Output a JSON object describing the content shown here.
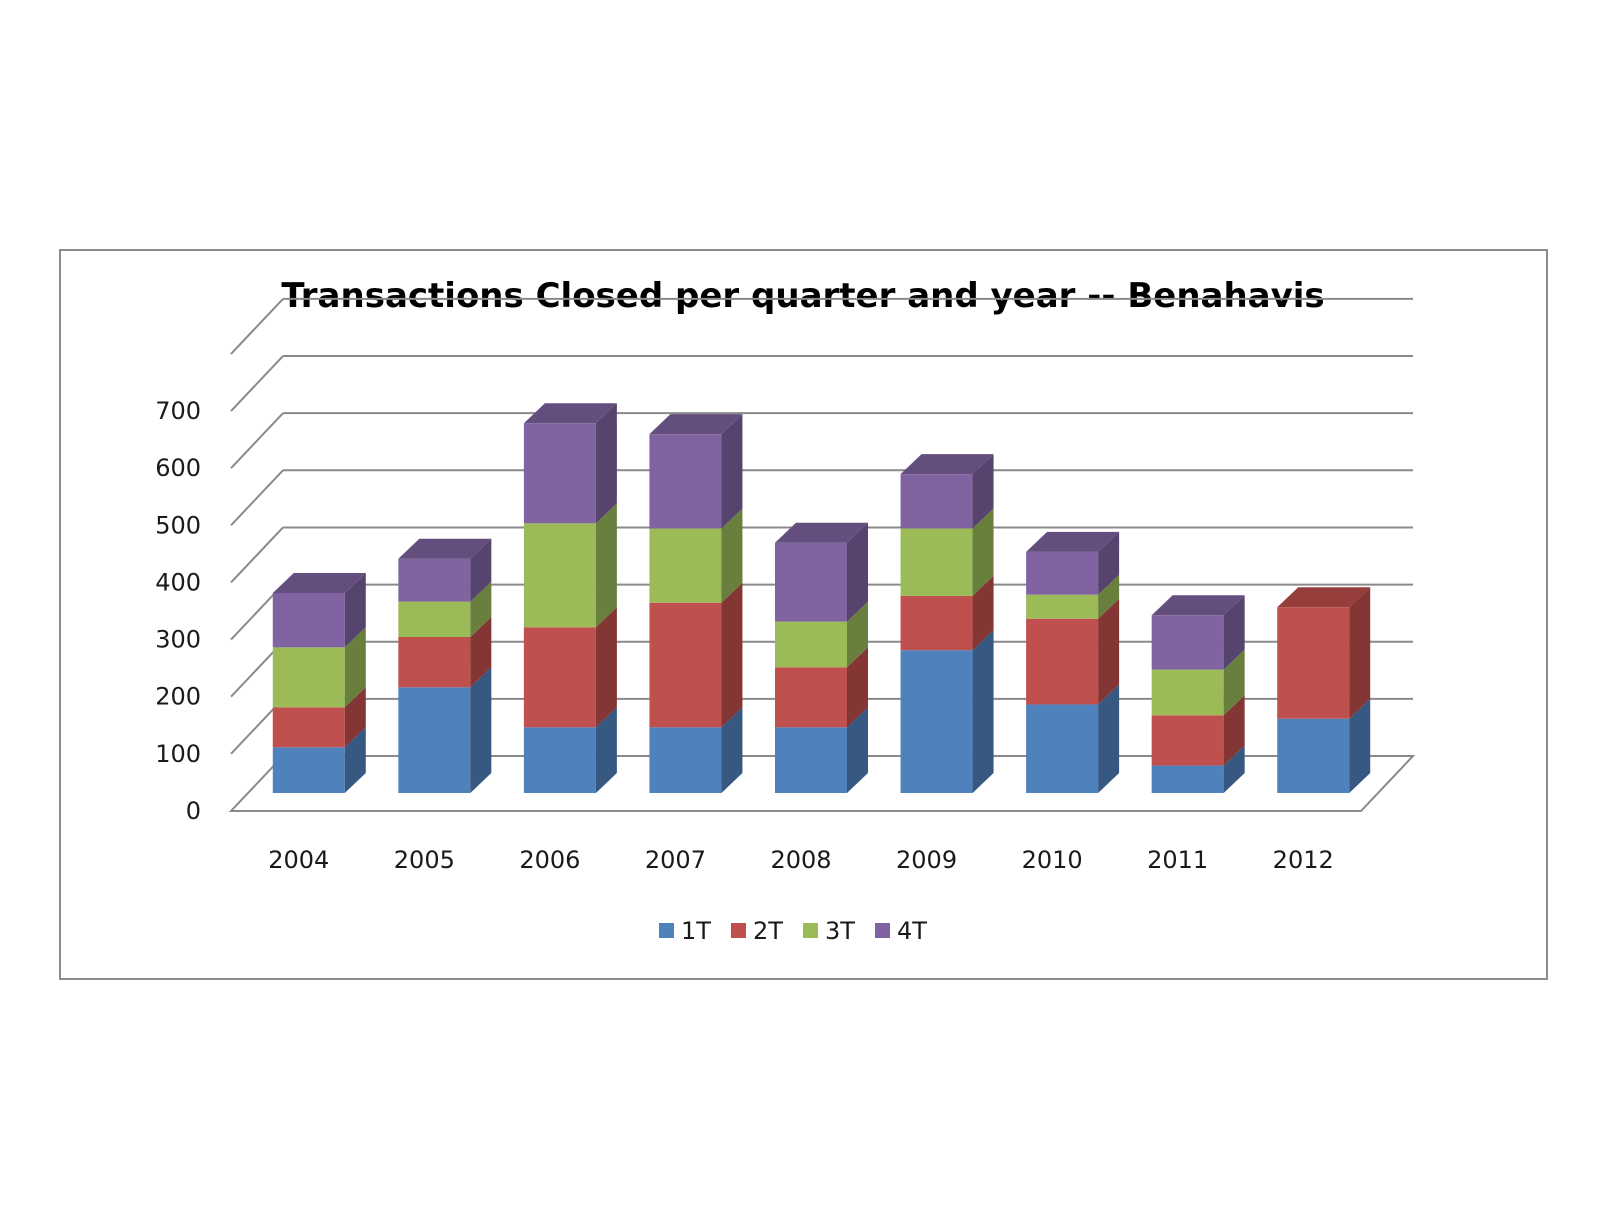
{
  "chart_data": {
    "type": "bar",
    "stacked": true,
    "three_d": true,
    "title": "Transactions Closed per quarter and year -- Benahavis",
    "xlabel": "",
    "ylabel": "",
    "ylim": [
      0,
      700
    ],
    "yticks": [
      "0",
      "100",
      "200",
      "300",
      "400",
      "500",
      "600",
      "700"
    ],
    "ytick_values": [
      0,
      100,
      200,
      300,
      400,
      500,
      600,
      700
    ],
    "categories": [
      "2004",
      "2005",
      "2006",
      "2007",
      "2008",
      "2009",
      "2010",
      "2011",
      "2012"
    ],
    "series": [
      {
        "name": "1T",
        "color": "#4f81bd",
        "values": [
          80,
          185,
          115,
          115,
          115,
          250,
          155,
          48,
          130
        ]
      },
      {
        "name": "2T",
        "color": "#c0504d",
        "values": [
          70,
          88,
          175,
          218,
          105,
          95,
          150,
          88,
          195
        ]
      },
      {
        "name": "3T",
        "color": "#9bbb59",
        "values": [
          105,
          62,
          182,
          130,
          80,
          118,
          42,
          80,
          0
        ]
      },
      {
        "name": "4T",
        "color": "#8064a2",
        "values": [
          95,
          75,
          175,
          165,
          138,
          95,
          75,
          95,
          0
        ]
      }
    ],
    "grid": true,
    "legend_position": "bottom"
  }
}
